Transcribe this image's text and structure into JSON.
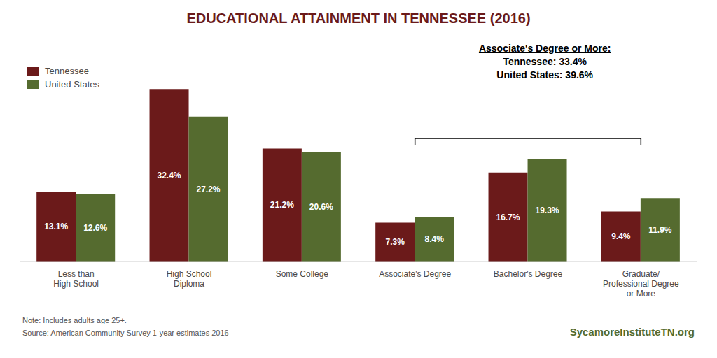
{
  "chart_data": {
    "type": "bar",
    "title": "EDUCATIONAL ATTAINMENT IN TENNESSEE (2016)",
    "categories": [
      "Less than\nHigh School",
      "High School\nDiploma",
      "Some College",
      "Associate's Degree",
      "Bachelor's Degree",
      "Graduate/\nProfessional Degree\nor More"
    ],
    "series": [
      {
        "name": "Tennessee",
        "color": "#6B1A1A",
        "values": [
          13.1,
          32.4,
          21.2,
          7.3,
          16.7,
          9.4
        ],
        "value_labels": [
          "13.1%",
          "32.4%",
          "21.2%",
          "7.3%",
          "16.7%",
          "9.4%"
        ]
      },
      {
        "name": "United States",
        "color": "#556B2F",
        "values": [
          12.6,
          27.2,
          20.6,
          8.4,
          19.3,
          11.9
        ],
        "value_labels": [
          "12.6%",
          "27.2%",
          "20.6%",
          "8.4%",
          "19.3%",
          "11.9%"
        ]
      }
    ],
    "ylim": [
      0,
      42
    ],
    "tick_labels": "x",
    "grid": false,
    "legend": "upper left",
    "data_labels": true,
    "annotations": [
      "Associate's Degree or More:",
      "Tennessee:  33.4%",
      "United States:  39.6%"
    ],
    "note": "Note: Includes adults age 25+.",
    "source": "Source: American Community Survey 1-year estimates 2016",
    "website": "SycamoreInstituteTN.org"
  }
}
